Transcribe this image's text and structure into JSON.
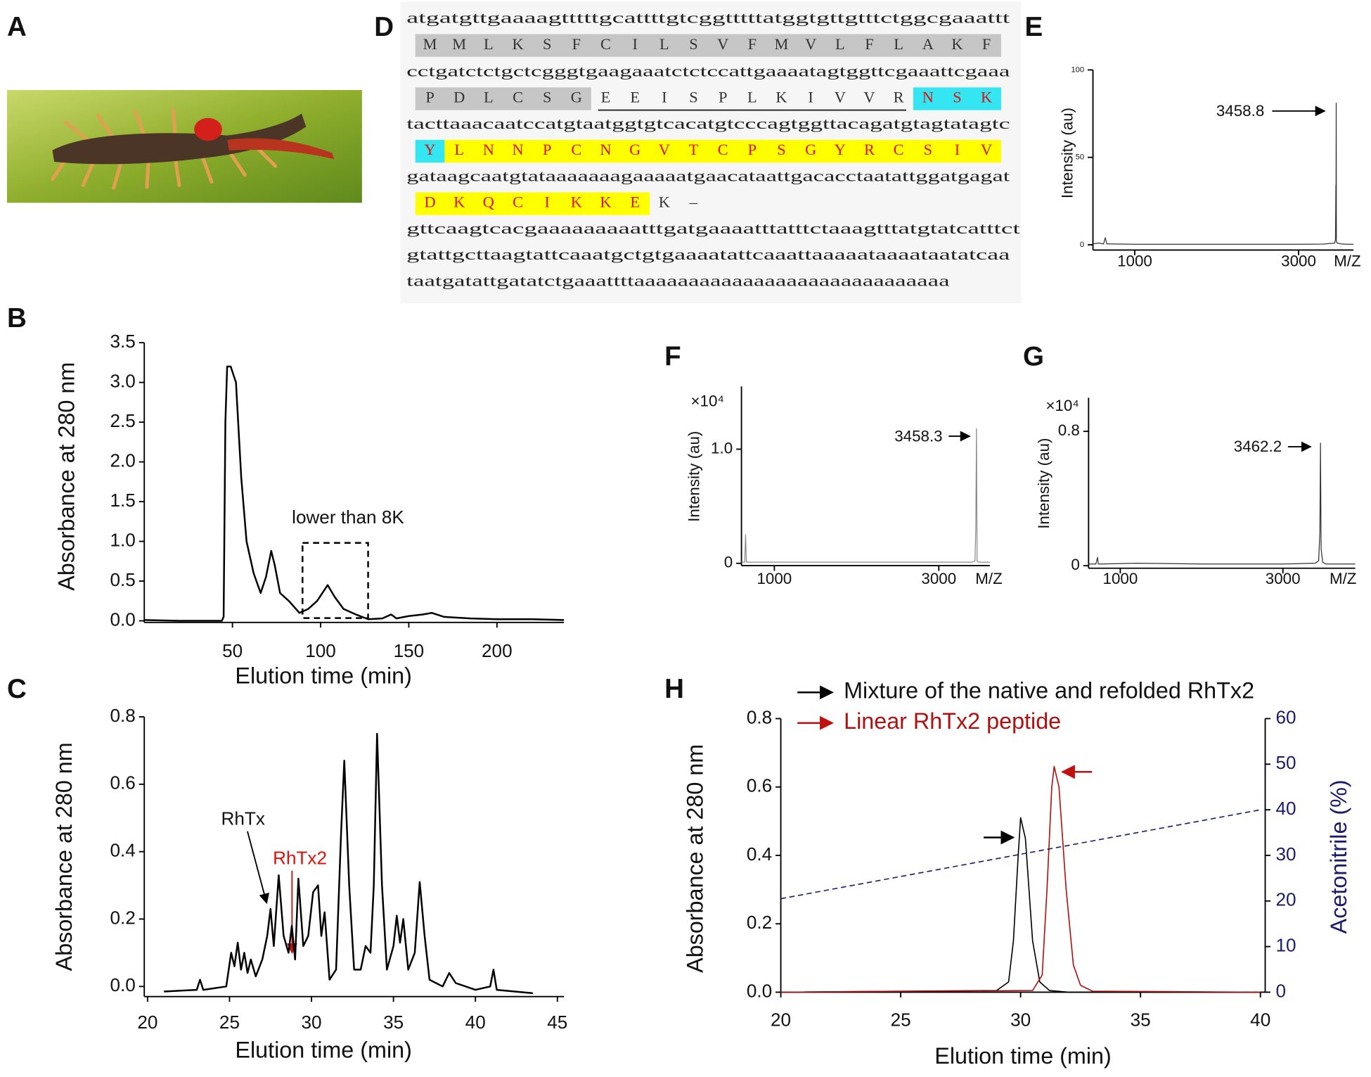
{
  "photo": {
    "panel": "A"
  },
  "sequence": {
    "panel": "D",
    "rows": [
      {
        "dna": "atgatgttgaaaagtttttgcattttgtcggtttttatggtgttgtttctggcgaaattt",
        "protein": [
          {
            "residues": "MMLKSFCILSVFMVLFLAKF",
            "highlight": "#c6c6c6",
            "color": "#333333"
          }
        ]
      },
      {
        "dna": "cctgatctctgctcgggtgaagaaatctctccattgaaaatagtggttcgaaattcgaaa",
        "protein": [
          {
            "residues": "PDLCSG",
            "highlight": "#c6c6c6",
            "color": "#333333"
          },
          {
            "residues": "EEISPLKIVVR",
            "color": "#333333",
            "underline": true
          },
          {
            "residues": "NSK",
            "highlight": "#33e6f2",
            "color": "#e01010"
          }
        ]
      },
      {
        "dna": "tacttaaacaatccatgtaatggtgtcacatgtcccagtggttacagatgtagtatagtc",
        "protein": [
          {
            "residues": "Y",
            "highlight": "#33e6f2",
            "color": "#e01010"
          },
          {
            "residues": "LNNPCNGVTCPSGYRCSIV",
            "highlight": "#ffff00",
            "color": "#e01010"
          }
        ]
      },
      {
        "dna": "gataagcaatgtataaaaaaagaaaaatgaacataattgacacctaatattggatgagat",
        "protein": [
          {
            "residues": "DKQCIKKE",
            "highlight": "#ffff00",
            "color": "#e01010"
          },
          {
            "residues": "K–",
            "color": "#333333"
          }
        ]
      },
      {
        "dna": "gttcaagtcacgaaaaaaaaatttgatgaaaatttatttctaaagtttatgtatcatttct"
      },
      {
        "dna": "gtattgcttaagtattcaaatgctgtgaaaatattcaaattaaaaataaaataatatcaa"
      },
      {
        "dna": "taatgatattgatatctgaaattttaaaaaaaaaaaaaaaaaaaaaaaaaaaaa"
      }
    ]
  },
  "chart_data": [
    {
      "type": "line",
      "panel": "B",
      "xlabel": "Elution time (min)",
      "ylabel": "Absorbance at 280 nm",
      "annotation": "lower than 8K",
      "color": "#000000",
      "x": [
        0,
        20,
        44,
        45,
        46,
        47,
        49,
        52,
        55,
        58,
        62,
        66,
        69,
        72,
        74,
        77,
        82,
        88,
        93,
        98,
        104,
        108,
        113,
        120,
        127,
        135,
        140,
        143,
        150,
        158,
        163,
        170,
        185,
        200,
        220,
        238
      ],
      "values": [
        0.01,
        0.0,
        0.0,
        0.05,
        2.5,
        3.2,
        3.2,
        3.0,
        1.8,
        1.0,
        0.6,
        0.35,
        0.55,
        0.88,
        0.7,
        0.35,
        0.25,
        0.1,
        0.15,
        0.25,
        0.45,
        0.3,
        0.15,
        0.08,
        0.02,
        0.03,
        0.08,
        0.03,
        0.06,
        0.08,
        0.1,
        0.05,
        0.03,
        0.02,
        0.02,
        0.01
      ],
      "xlim": [
        0,
        238
      ],
      "xticks": [
        50,
        100,
        150,
        200
      ],
      "ylim": [
        -0.02,
        3.5
      ],
      "yticks": [
        {
          "value": 0,
          "label": "0.0"
        },
        {
          "value": 0.5,
          "label": "0.5"
        },
        {
          "value": 1,
          "label": "1.0"
        },
        {
          "value": 1.5,
          "label": "1.5"
        },
        {
          "value": 2,
          "label": "2.0"
        },
        {
          "value": 2.5,
          "label": "2.5"
        },
        {
          "value": 3,
          "label": "3.0"
        },
        {
          "value": 3.5,
          "label": "3.5"
        }
      ]
    },
    {
      "type": "line",
      "panel": "C",
      "xlabel": "Elution time (min)",
      "ylabel": "Absorbance at 280 nm",
      "annotations": [
        "RhTx",
        "RhTx2"
      ],
      "color": "#000000",
      "x": [
        21,
        23,
        23.2,
        23.4,
        24.8,
        25.1,
        25.3,
        25.5,
        25.7,
        25.9,
        26.1,
        26.3,
        26.6,
        27,
        27.3,
        27.5,
        27.7,
        28,
        28.3,
        28.6,
        28.8,
        29,
        29.2,
        29.5,
        29.8,
        30.1,
        30.4,
        30.6,
        30.8,
        31.1,
        31.5,
        31.8,
        32,
        32.3,
        32.6,
        33,
        33.3,
        33.6,
        33.8,
        34,
        34.3,
        34.6,
        35,
        35.2,
        35.4,
        35.6,
        35.9,
        36.3,
        36.6,
        36.9,
        37.2,
        38,
        38.4,
        38.8,
        40,
        40.9,
        41.1,
        41.3,
        43.5
      ],
      "values": [
        -0.015,
        -0.01,
        0.02,
        -0.01,
        0.0,
        0.1,
        0.06,
        0.13,
        0.05,
        0.1,
        0.04,
        0.08,
        0.03,
        0.08,
        0.15,
        0.23,
        0.12,
        0.33,
        0.15,
        0.1,
        0.18,
        0.08,
        0.32,
        0.12,
        0.15,
        0.28,
        0.3,
        0.15,
        0.22,
        0.02,
        0.05,
        0.45,
        0.67,
        0.3,
        0.05,
        0.05,
        0.12,
        0.1,
        0.3,
        0.75,
        0.3,
        0.05,
        0.12,
        0.21,
        0.13,
        0.2,
        0.05,
        0.1,
        0.31,
        0.15,
        0.02,
        0.0,
        0.04,
        0.01,
        -0.01,
        0.0,
        0.05,
        -0.01,
        -0.02
      ],
      "xlim": [
        19.8,
        45.4
      ],
      "xticks": [
        20,
        25,
        30,
        35,
        40,
        45
      ],
      "ylim": [
        -0.03,
        0.8
      ],
      "yticks": [
        {
          "value": 0,
          "label": "0.0"
        },
        0.2,
        0.4,
        0.6,
        0.8
      ]
    },
    {
      "type": "line",
      "panel": "E",
      "xlabel": "M/Z",
      "ylabel": "Intensity (au)",
      "annotation": "3458.8",
      "color": "#333333",
      "x": [
        490,
        560,
        620,
        640,
        660,
        700,
        1000,
        1500,
        2000,
        2500,
        3000,
        3300,
        3440,
        3450,
        3455,
        3456,
        3458.8,
        3461,
        3470,
        3520,
        3600,
        3670
      ],
      "values": [
        0.5,
        1,
        0.5,
        4,
        0.5,
        0.5,
        0.3,
        0.3,
        0.3,
        0.3,
        0.3,
        0.4,
        1,
        3,
        34,
        10,
        81,
        2,
        1,
        0.5,
        0.3,
        0.3
      ],
      "xlim": [
        490,
        3670
      ],
      "xticks": [
        1000,
        3000
      ],
      "ylim": [
        -3,
        100
      ],
      "yticks": [
        0,
        50,
        100
      ]
    },
    {
      "type": "line",
      "panel": "F",
      "xlabel": "M/Z",
      "ylabel": "Intensity (au)",
      "y_multiplier": "×10⁴",
      "annotation": "3458.3",
      "color": "#8a8a8a",
      "x": [
        600,
        640,
        650,
        660,
        700,
        1500,
        3000,
        3400,
        3440,
        3450,
        3458.3,
        3466,
        3480,
        3620
      ],
      "values": [
        0.01,
        0.01,
        0.25,
        0.01,
        0.01,
        0.01,
        0.01,
        0.01,
        0.02,
        0.3,
        1.18,
        0.02,
        0.01,
        0.01
      ],
      "xlim": [
        600,
        3620
      ],
      "xticks": [
        1000,
        3000
      ],
      "ylim": [
        -0.02,
        1.55
      ],
      "yticks": [
        0,
        {
          "value": 1,
          "label": "1.0"
        }
      ]
    },
    {
      "type": "line",
      "panel": "G",
      "xlabel": "M/Z",
      "ylabel": "Intensity (au)",
      "y_multiplier": "×10⁴",
      "annotation": "3462.2",
      "color": "#333333",
      "x": [
        610,
        700,
        720,
        730,
        760,
        1200,
        2000,
        3000,
        3400,
        3440,
        3455,
        3462.2,
        3470,
        3490,
        3530,
        3890
      ],
      "values": [
        0.01,
        0.01,
        0.05,
        0.01,
        0.01,
        0.015,
        0.01,
        0.01,
        0.015,
        0.03,
        0.2,
        0.73,
        0.1,
        0.02,
        0.01,
        0.01
      ],
      "xlim": [
        610,
        3890
      ],
      "xticks": [
        1000,
        3000
      ],
      "ylim": [
        -0.015,
        1.0
      ],
      "yticks": [
        0,
        0.8
      ]
    },
    {
      "type": "line",
      "panel": "H",
      "xlabel": "Elution time (min)",
      "ylabel": "Absorbance at 280 nm",
      "y2label": "Acetonitrile (%)",
      "y2_color": "#1c1c6b",
      "series": [
        {
          "name": "Mixture of the native and refolded RhTx2",
          "color": "#000000",
          "x": [
            20,
            29,
            29.5,
            29.7,
            29.9,
            30.0,
            30.2,
            30.5,
            30.8,
            31.2,
            32,
            40
          ],
          "values": [
            0,
            0.005,
            0.03,
            0.15,
            0.4,
            0.51,
            0.45,
            0.15,
            0.03,
            0.005,
            0,
            0
          ]
        },
        {
          "name": "Linear RhTx2 peptide",
          "color": "#b01010",
          "x": [
            20,
            30.5,
            30.9,
            31.1,
            31.3,
            31.4,
            31.6,
            31.9,
            32.2,
            32.5,
            33,
            40
          ],
          "values": [
            0,
            0.005,
            0.05,
            0.3,
            0.6,
            0.66,
            0.6,
            0.3,
            0.08,
            0.02,
            0.003,
            0
          ]
        },
        {
          "color": "#1c1c6b",
          "dashed": true,
          "axis": "y2",
          "x": [
            20,
            40
          ],
          "values": [
            20.5,
            40
          ]
        }
      ],
      "xlim": [
        20,
        40.2
      ],
      "xticks": [
        20,
        25,
        30,
        35,
        40
      ],
      "ylim": [
        0,
        0.8
      ],
      "yticks": [
        {
          "value": 0,
          "label": "0.0"
        },
        0.2,
        0.4,
        0.6,
        0.8
      ],
      "y2lim": [
        0,
        60
      ],
      "y2ticks": [
        0,
        10,
        20,
        30,
        40,
        50,
        60
      ]
    }
  ]
}
